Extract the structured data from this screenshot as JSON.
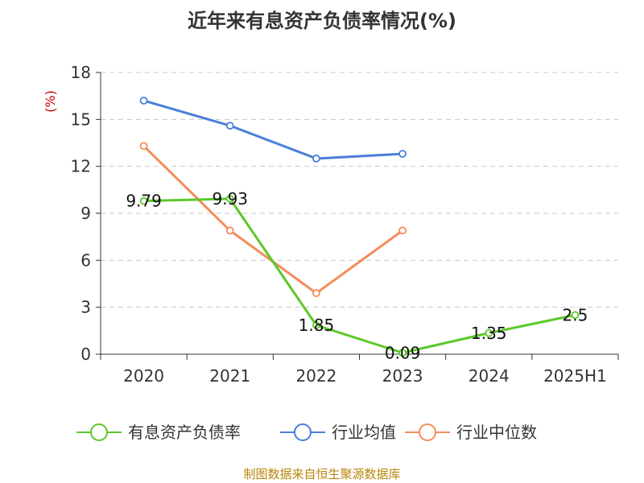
{
  "chart_data": {
    "type": "line",
    "title": "近年来有息资产负债率情况(%)",
    "ylabel": "(%)",
    "xlabel": "",
    "categories": [
      "2020",
      "2021",
      "2022",
      "2023",
      "2024",
      "2025H1"
    ],
    "ylim": [
      0,
      18
    ],
    "yticks": [
      0,
      3,
      6,
      9,
      12,
      15,
      18
    ],
    "grid": true,
    "legend_position": "bottom",
    "series": [
      {
        "name": "有息资产负债率",
        "color": "#5cc82a",
        "values": [
          9.79,
          9.93,
          1.85,
          0.09,
          1.35,
          2.5
        ],
        "labels": [
          "9.79",
          "9.93",
          "1.85",
          "0.09",
          "1.35",
          "2.5"
        ]
      },
      {
        "name": "行业均值",
        "color": "#4a7fd9",
        "values": [
          16.2,
          14.6,
          12.5,
          12.8,
          null,
          null
        ],
        "labels": []
      },
      {
        "name": "行业中位数",
        "color": "#f58c5a",
        "values": [
          13.3,
          7.9,
          3.9,
          7.9,
          null,
          null
        ],
        "labels": []
      }
    ]
  },
  "footer": {
    "source": "制图数据来自恒生聚源数据库"
  }
}
